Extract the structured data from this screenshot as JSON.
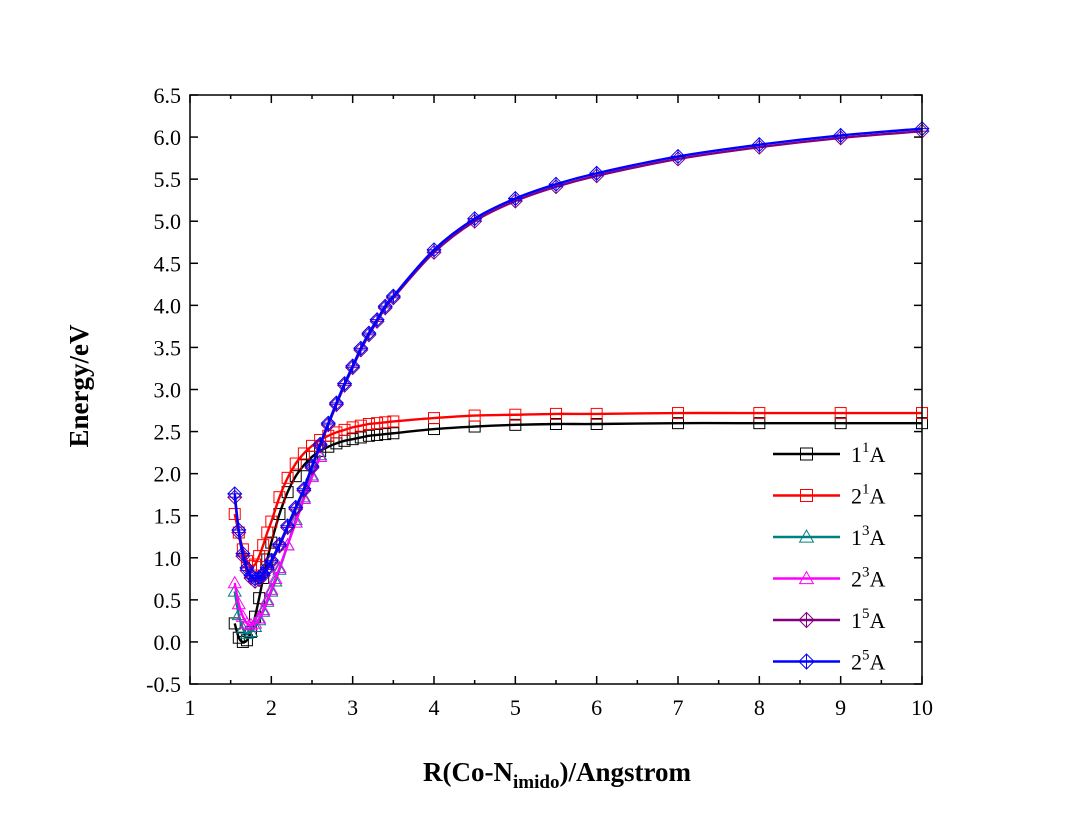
{
  "chart_data": {
    "type": "line",
    "title": "",
    "xlabel": {
      "main": "R(Co-N",
      "sub": "imido",
      "tail": ")/Angstrom"
    },
    "ylabel": "Energy/eV",
    "xlim": [
      1,
      10
    ],
    "ylim": [
      -0.5,
      6.5
    ],
    "xticks": [
      "1",
      "2",
      "3",
      "4",
      "5",
      "6",
      "7",
      "8",
      "9",
      "10"
    ],
    "yticks": [
      "-0.5",
      "0.0",
      "0.5",
      "1.0",
      "1.5",
      "2.0",
      "2.5",
      "3.0",
      "3.5",
      "4.0",
      "4.5",
      "5.0",
      "5.5",
      "6.0",
      "6.5"
    ],
    "legend_position": "lower-right",
    "series": [
      {
        "name": "1",
        "sup": "1",
        "suffix": "A",
        "color": "#000000",
        "marker": "square",
        "x": [
          1.55,
          1.6,
          1.65,
          1.7,
          1.75,
          1.8,
          1.85,
          1.9,
          1.95,
          2.0,
          2.1,
          2.2,
          2.3,
          2.4,
          2.5,
          2.6,
          2.7,
          2.8,
          2.9,
          3.0,
          3.1,
          3.2,
          3.3,
          3.4,
          3.5,
          4.0,
          4.5,
          5.0,
          5.5,
          6.0,
          7.0,
          8.0,
          9.0,
          10.0
        ],
        "y": [
          0.22,
          0.05,
          0.0,
          0.02,
          0.12,
          0.3,
          0.52,
          0.76,
          0.98,
          1.18,
          1.52,
          1.78,
          1.97,
          2.1,
          2.2,
          2.27,
          2.32,
          2.36,
          2.39,
          2.41,
          2.43,
          2.45,
          2.46,
          2.47,
          2.48,
          2.53,
          2.56,
          2.58,
          2.59,
          2.59,
          2.6,
          2.6,
          2.6,
          2.6
        ]
      },
      {
        "name": "2",
        "sup": "1",
        "suffix": "A",
        "color": "#ff0000",
        "marker": "square",
        "x": [
          1.55,
          1.6,
          1.65,
          1.7,
          1.75,
          1.8,
          1.85,
          1.9,
          1.95,
          2.0,
          2.1,
          2.2,
          2.3,
          2.4,
          2.5,
          2.6,
          2.7,
          2.8,
          2.9,
          3.0,
          3.1,
          3.2,
          3.3,
          3.4,
          3.5,
          4.0,
          4.5,
          5.0,
          5.5,
          6.0,
          7.0,
          8.0,
          9.0,
          10.0
        ],
        "y": [
          1.52,
          1.3,
          1.1,
          0.96,
          0.9,
          0.92,
          1.02,
          1.15,
          1.3,
          1.43,
          1.72,
          1.95,
          2.12,
          2.24,
          2.33,
          2.4,
          2.45,
          2.49,
          2.52,
          2.55,
          2.57,
          2.59,
          2.6,
          2.61,
          2.62,
          2.66,
          2.69,
          2.7,
          2.71,
          2.71,
          2.72,
          2.72,
          2.72,
          2.72
        ]
      },
      {
        "name": "1",
        "sup": "3",
        "suffix": "A",
        "color": "#008080",
        "marker": "triangle",
        "x": [
          1.55,
          1.6,
          1.65,
          1.7,
          1.75,
          1.8,
          1.85,
          1.9,
          1.95,
          2.0,
          2.05,
          2.1,
          2.2,
          2.3,
          2.4,
          2.5,
          2.6
        ],
        "y": [
          0.6,
          0.32,
          0.16,
          0.1,
          0.12,
          0.18,
          0.26,
          0.36,
          0.48,
          0.6,
          0.72,
          0.86,
          1.15,
          1.45,
          1.72,
          1.98,
          2.22
        ]
      },
      {
        "name": "2",
        "sup": "3",
        "suffix": "A",
        "color": "#ff00ff",
        "marker": "triangle",
        "x": [
          1.55,
          1.6,
          1.65,
          1.7,
          1.75,
          1.8,
          1.85,
          1.9,
          1.95,
          2.0,
          2.05,
          2.1,
          2.2,
          2.3,
          2.4,
          2.5,
          2.6
        ],
        "y": [
          0.7,
          0.45,
          0.3,
          0.22,
          0.2,
          0.22,
          0.28,
          0.38,
          0.5,
          0.62,
          0.75,
          0.88,
          1.15,
          1.42,
          1.7,
          1.96,
          2.2
        ]
      },
      {
        "name": "1",
        "sup": "5",
        "suffix": "A",
        "color": "#800080",
        "marker": "diamond",
        "x": [
          1.55,
          1.6,
          1.65,
          1.7,
          1.75,
          1.8,
          1.85,
          1.9,
          1.95,
          2.0,
          2.1,
          2.2,
          2.3,
          2.4,
          2.5,
          2.6,
          2.7,
          2.8,
          2.9,
          3.0,
          3.1,
          3.2,
          3.3,
          3.4,
          3.5,
          4.0,
          4.5,
          5.0,
          5.5,
          6.0,
          7.0,
          8.0,
          9.0,
          10.0
        ],
        "y": [
          1.72,
          1.3,
          1.02,
          0.85,
          0.76,
          0.72,
          0.74,
          0.79,
          0.86,
          0.95,
          1.14,
          1.36,
          1.58,
          1.8,
          2.07,
          2.33,
          2.58,
          2.82,
          3.05,
          3.26,
          3.47,
          3.65,
          3.81,
          3.97,
          4.09,
          4.63,
          5.0,
          5.24,
          5.41,
          5.54,
          5.74,
          5.88,
          5.99,
          6.07
        ]
      },
      {
        "name": "2",
        "sup": "5",
        "suffix": "A",
        "color": "#0000ff",
        "marker": "diamond",
        "x": [
          1.55,
          1.6,
          1.65,
          1.7,
          1.75,
          1.8,
          1.85,
          1.9,
          1.95,
          2.0,
          2.1,
          2.2,
          2.3,
          2.4,
          2.5,
          2.6,
          2.7,
          2.8,
          2.9,
          3.0,
          3.1,
          3.2,
          3.3,
          3.4,
          3.5,
          4.0,
          4.5,
          5.0,
          5.5,
          6.0,
          7.0,
          8.0,
          9.0,
          10.0
        ],
        "y": [
          1.76,
          1.33,
          1.05,
          0.88,
          0.79,
          0.75,
          0.77,
          0.81,
          0.88,
          0.97,
          1.16,
          1.38,
          1.6,
          1.82,
          2.09,
          2.35,
          2.6,
          2.84,
          3.07,
          3.28,
          3.49,
          3.67,
          3.83,
          3.99,
          4.11,
          4.66,
          5.03,
          5.27,
          5.44,
          5.57,
          5.77,
          5.91,
          6.02,
          6.1
        ]
      }
    ]
  }
}
